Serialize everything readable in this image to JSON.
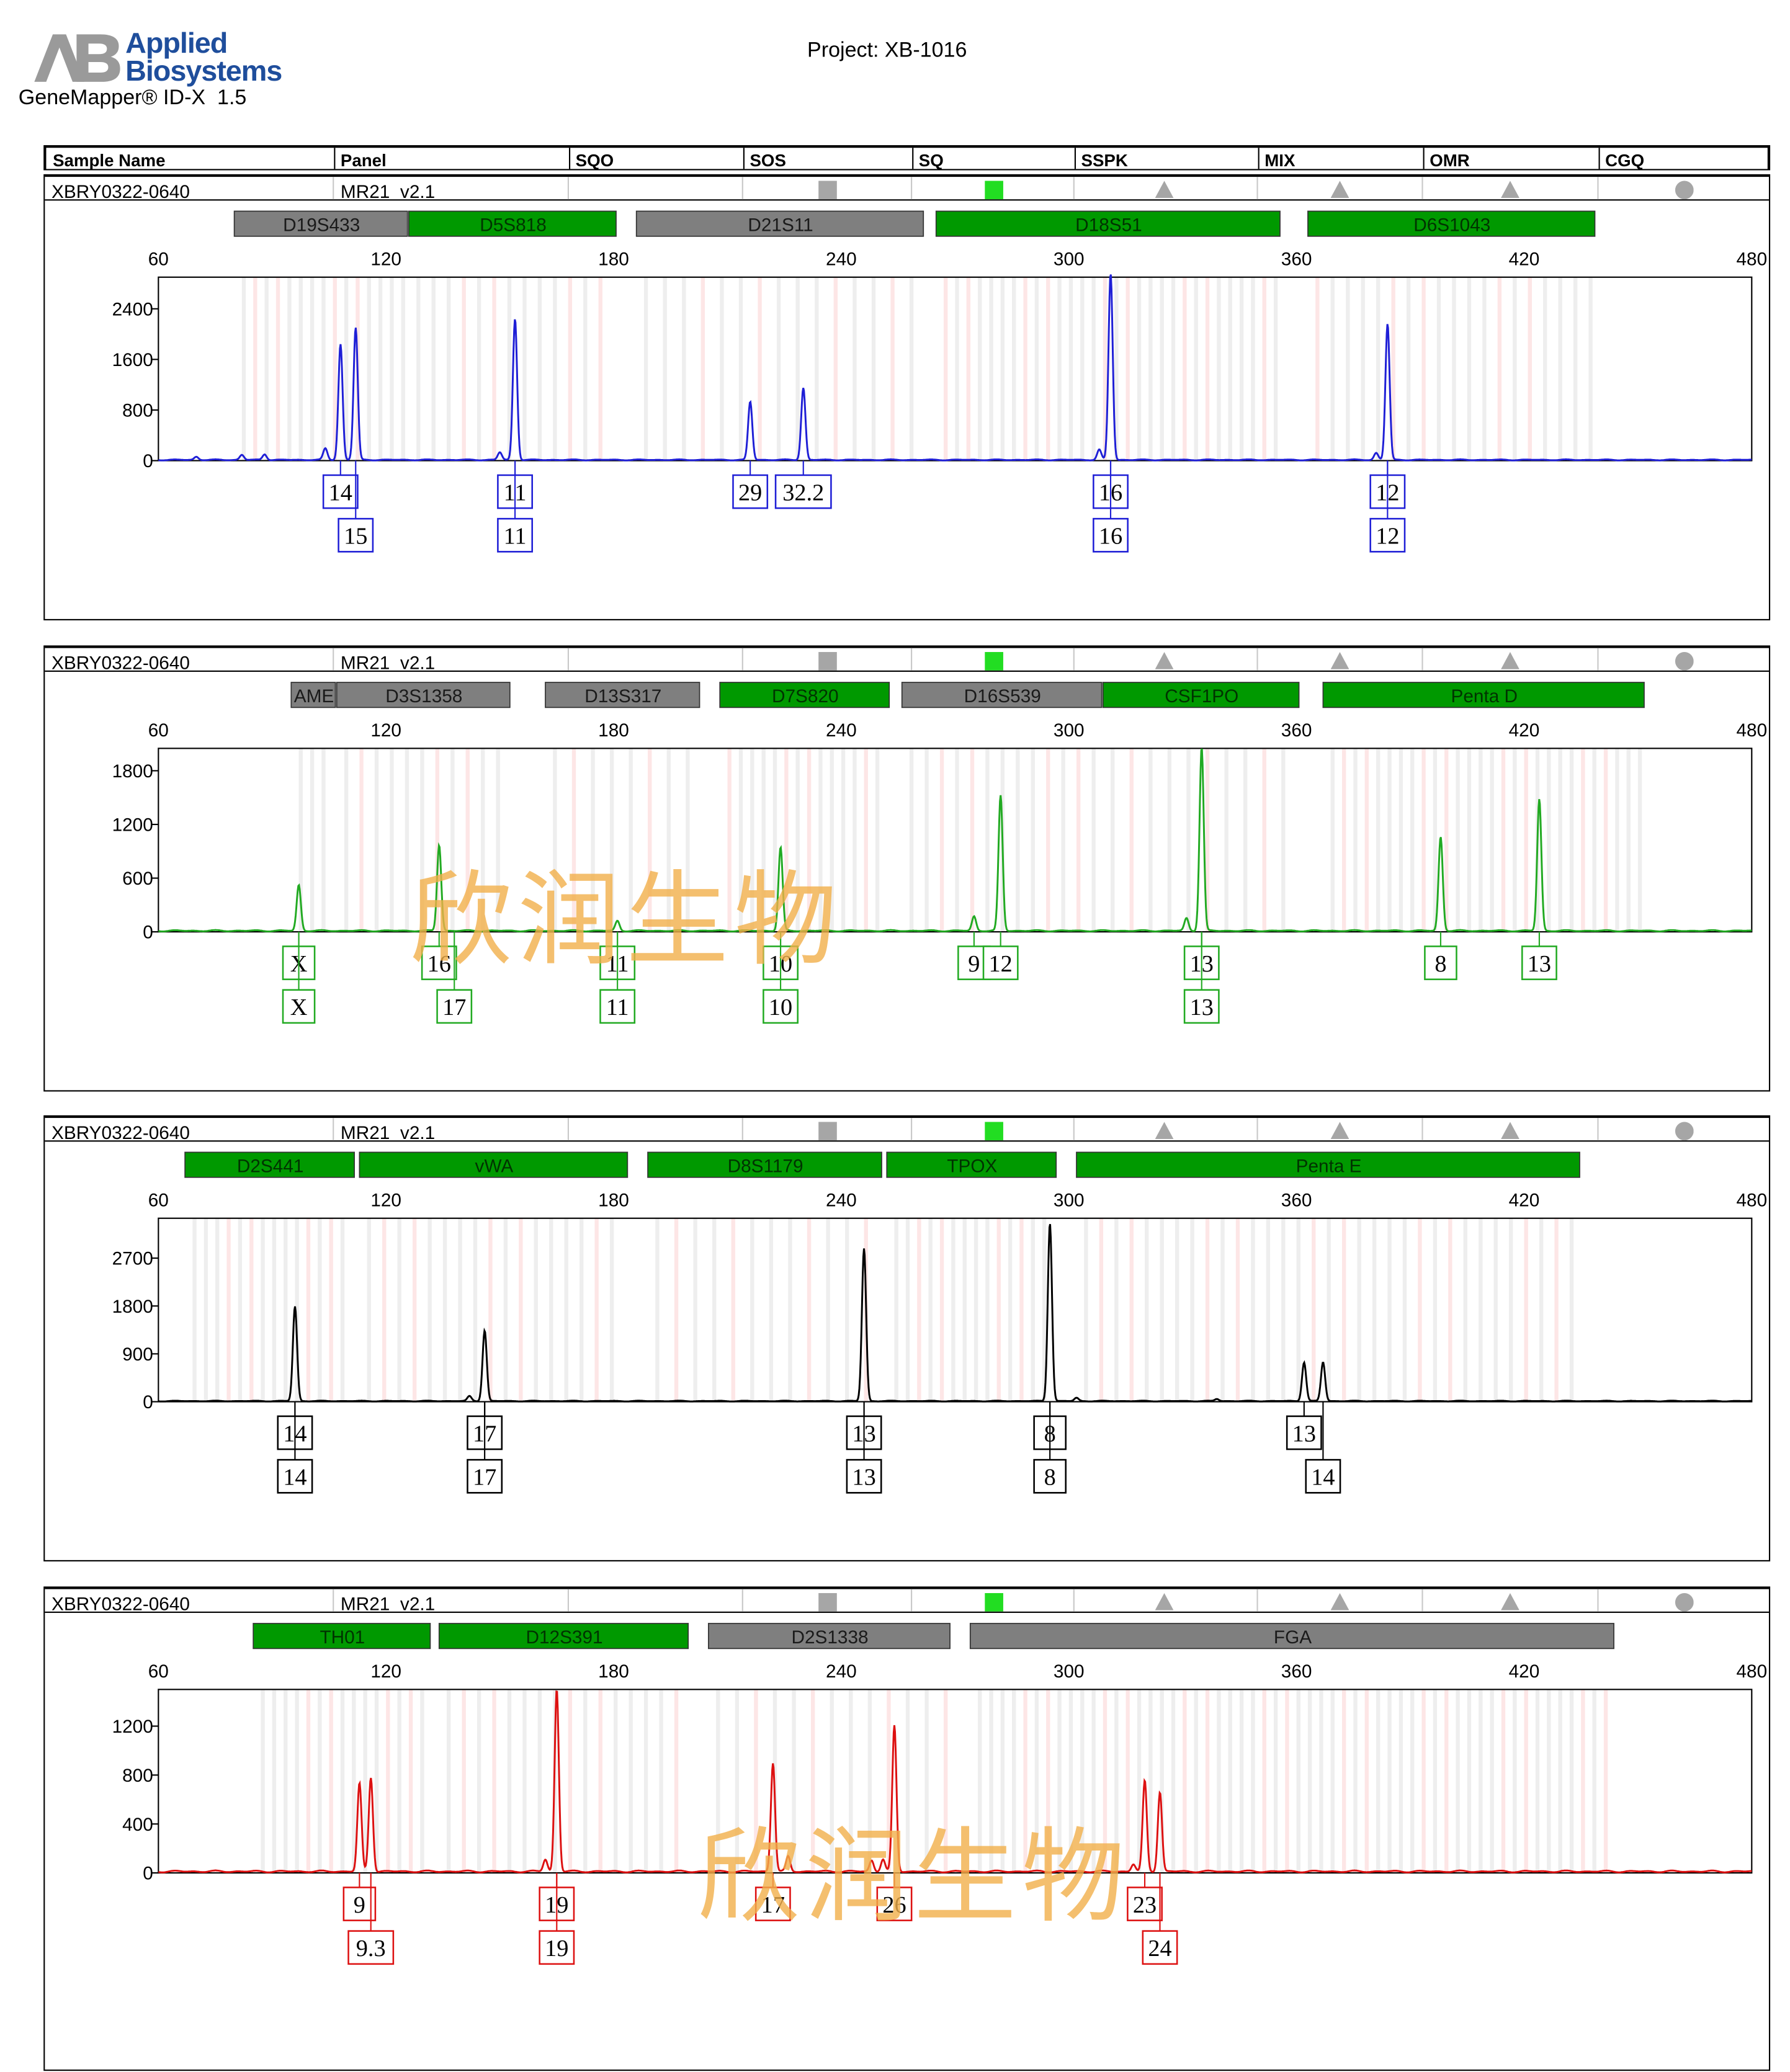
{
  "header": {
    "logo_brand_line1": "Applied",
    "logo_brand_line2": "Biosystems",
    "software": "GeneMapper® ID-X  1.5",
    "project": "Project: XB-1016",
    "columns": [
      "Sample Name",
      "Panel",
      "SQO",
      "SOS",
      "SQ",
      "SSPK",
      "MIX",
      "OMR",
      "CGQ"
    ]
  },
  "sample": {
    "name": "XBRY0322-0640",
    "panel": "MR21  v2.1",
    "flags": [
      {
        "column": "SOS",
        "shape": "square",
        "color": "#a6a6a6"
      },
      {
        "column": "SQ",
        "shape": "square",
        "color": "#22dd22"
      },
      {
        "column": "SSPK",
        "shape": "triangle",
        "color": "#a6a6a6"
      },
      {
        "column": "MIX",
        "shape": "triangle",
        "color": "#a6a6a6"
      },
      {
        "column": "OMR",
        "shape": "triangle",
        "color": "#a6a6a6"
      },
      {
        "column": "CGQ",
        "shape": "circle",
        "color": "#a6a6a6"
      }
    ]
  },
  "watermark": "欣润生物",
  "colors": {
    "marker_green": "#009900",
    "marker_gray": "#7f7f7f",
    "bin_gray": "#eeeeee",
    "bin_pink": "#fde6e6"
  },
  "chart_data": [
    {
      "type": "line",
      "dye": "blue",
      "color": "#1f1fd6",
      "xlim": [
        60,
        480
      ],
      "xticks": [
        60,
        120,
        180,
        240,
        300,
        360,
        420,
        480
      ],
      "ylim": [
        0,
        2900
      ],
      "yticks": [
        0,
        800,
        1600,
        2400
      ],
      "markers": [
        {
          "name": "D19S433",
          "start": 80,
          "end": 126,
          "color": "gray"
        },
        {
          "name": "D5S818",
          "start": 126,
          "end": 181,
          "color": "green"
        },
        {
          "name": "D21S11",
          "start": 186,
          "end": 262,
          "color": "gray"
        },
        {
          "name": "D18S51",
          "start": 265,
          "end": 356,
          "color": "green"
        },
        {
          "name": "D6S1043",
          "start": 363,
          "end": 439,
          "color": "green"
        }
      ],
      "peaks": [
        {
          "x": 108,
          "y": 1830
        },
        {
          "x": 112,
          "y": 2090
        },
        {
          "x": 154,
          "y": 2230
        },
        {
          "x": 216,
          "y": 920
        },
        {
          "x": 230,
          "y": 1140
        },
        {
          "x": 311,
          "y": 2950
        },
        {
          "x": 384,
          "y": 2150
        },
        {
          "x": 104,
          "y": 180
        },
        {
          "x": 150,
          "y": 120
        },
        {
          "x": 308,
          "y": 160
        },
        {
          "x": 381,
          "y": 110
        },
        {
          "x": 70,
          "y": 50
        },
        {
          "x": 82,
          "y": 80
        },
        {
          "x": 88,
          "y": 90
        }
      ],
      "calls": [
        {
          "x": 108,
          "label": "14",
          "row": 1
        },
        {
          "x": 112,
          "label": "15",
          "row": 2
        },
        {
          "x": 154,
          "label": "11",
          "row": 1
        },
        {
          "x": 154,
          "label": "11",
          "row": 2
        },
        {
          "x": 216,
          "label": "29",
          "row": 1
        },
        {
          "x": 230,
          "label": "32.2",
          "row": 1
        },
        {
          "x": 311,
          "label": "16",
          "row": 1
        },
        {
          "x": 311,
          "label": "16",
          "row": 2
        },
        {
          "x": 384,
          "label": "12",
          "row": 1
        },
        {
          "x": 384,
          "label": "12",
          "row": 2
        }
      ]
    },
    {
      "type": "line",
      "dye": "green",
      "color": "#22aa22",
      "xlim": [
        60,
        480
      ],
      "xticks": [
        60,
        120,
        180,
        240,
        300,
        360,
        420,
        480
      ],
      "ylim": [
        0,
        2050
      ],
      "yticks": [
        0,
        600,
        1200,
        1800
      ],
      "markers": [
        {
          "name": "AME",
          "start": 95,
          "end": 107,
          "color": "gray"
        },
        {
          "name": "D3S1358",
          "start": 107,
          "end": 153,
          "color": "gray"
        },
        {
          "name": "D13S317",
          "start": 162,
          "end": 203,
          "color": "gray"
        },
        {
          "name": "D7S820",
          "start": 208,
          "end": 253,
          "color": "green"
        },
        {
          "name": "D16S539",
          "start": 256,
          "end": 309,
          "color": "gray"
        },
        {
          "name": "CSF1PO",
          "start": 309,
          "end": 361,
          "color": "green"
        },
        {
          "name": "Penta D",
          "start": 367,
          "end": 452,
          "color": "green"
        }
      ],
      "peaks": [
        {
          "x": 97,
          "y": 510
        },
        {
          "x": 134,
          "y": 960
        },
        {
          "x": 181,
          "y": 110
        },
        {
          "x": 224,
          "y": 930
        },
        {
          "x": 275,
          "y": 160
        },
        {
          "x": 282,
          "y": 1510
        },
        {
          "x": 335,
          "y": 2050
        },
        {
          "x": 331,
          "y": 140
        },
        {
          "x": 398,
          "y": 1050
        },
        {
          "x": 424,
          "y": 1470
        }
      ],
      "calls": [
        {
          "x": 97,
          "label": "X",
          "row": 1
        },
        {
          "x": 97,
          "label": "X",
          "row": 2
        },
        {
          "x": 134,
          "label": "16",
          "row": 1
        },
        {
          "x": 138,
          "label": "17",
          "row": 2
        },
        {
          "x": 181,
          "label": "11",
          "row": 1
        },
        {
          "x": 181,
          "label": "11",
          "row": 2
        },
        {
          "x": 224,
          "label": "10",
          "row": 1
        },
        {
          "x": 224,
          "label": "10",
          "row": 2
        },
        {
          "x": 275,
          "label": "9",
          "row": 1
        },
        {
          "x": 282,
          "label": "12",
          "row": 1
        },
        {
          "x": 335,
          "label": "13",
          "row": 1
        },
        {
          "x": 335,
          "label": "13",
          "row": 2
        },
        {
          "x": 398,
          "label": "8",
          "row": 1
        },
        {
          "x": 424,
          "label": "13",
          "row": 1
        }
      ]
    },
    {
      "type": "line",
      "dye": "yellow",
      "color": "#000000",
      "xlim": [
        60,
        480
      ],
      "xticks": [
        60,
        120,
        180,
        240,
        300,
        360,
        420,
        480
      ],
      "ylim": [
        0,
        3450
      ],
      "yticks": [
        0,
        900,
        1800,
        2700
      ],
      "markers": [
        {
          "name": "D2S441",
          "start": 67,
          "end": 112,
          "color": "green"
        },
        {
          "name": "vWA",
          "start": 113,
          "end": 184,
          "color": "green"
        },
        {
          "name": "D8S1179",
          "start": 189,
          "end": 251,
          "color": "green"
        },
        {
          "name": "TPOX",
          "start": 252,
          "end": 297,
          "color": "green"
        },
        {
          "name": "Penta E",
          "start": 302,
          "end": 435,
          "color": "green"
        }
      ],
      "peaks": [
        {
          "x": 96,
          "y": 1780
        },
        {
          "x": 146,
          "y": 1330
        },
        {
          "x": 246,
          "y": 2870
        },
        {
          "x": 295,
          "y": 3350
        },
        {
          "x": 362,
          "y": 730
        },
        {
          "x": 367,
          "y": 730
        },
        {
          "x": 142,
          "y": 90
        },
        {
          "x": 302,
          "y": 60
        },
        {
          "x": 339,
          "y": 40
        }
      ],
      "calls": [
        {
          "x": 96,
          "label": "14",
          "row": 1
        },
        {
          "x": 96,
          "label": "14",
          "row": 2
        },
        {
          "x": 146,
          "label": "17",
          "row": 1
        },
        {
          "x": 146,
          "label": "17",
          "row": 2
        },
        {
          "x": 246,
          "label": "13",
          "row": 1
        },
        {
          "x": 246,
          "label": "13",
          "row": 2
        },
        {
          "x": 295,
          "label": "8",
          "row": 1
        },
        {
          "x": 295,
          "label": "8",
          "row": 2
        },
        {
          "x": 362,
          "label": "13",
          "row": 1
        },
        {
          "x": 367,
          "label": "14",
          "row": 2
        }
      ]
    },
    {
      "type": "line",
      "dye": "red",
      "color": "#dd1111",
      "xlim": [
        60,
        480
      ],
      "xticks": [
        60,
        120,
        180,
        240,
        300,
        360,
        420,
        480
      ],
      "ylim": [
        0,
        1500
      ],
      "yticks": [
        0,
        400,
        800,
        1200
      ],
      "markers": [
        {
          "name": "TH01",
          "start": 85,
          "end": 132,
          "color": "green"
        },
        {
          "name": "D12S391",
          "start": 134,
          "end": 200,
          "color": "green"
        },
        {
          "name": "D2S1338",
          "start": 205,
          "end": 269,
          "color": "gray"
        },
        {
          "name": "FGA",
          "start": 274,
          "end": 444,
          "color": "gray"
        }
      ],
      "peaks": [
        {
          "x": 113,
          "y": 720
        },
        {
          "x": 116,
          "y": 770
        },
        {
          "x": 165,
          "y": 1490
        },
        {
          "x": 222,
          "y": 890
        },
        {
          "x": 254,
          "y": 1190
        },
        {
          "x": 320,
          "y": 740
        },
        {
          "x": 324,
          "y": 650
        },
        {
          "x": 162,
          "y": 100
        },
        {
          "x": 226,
          "y": 120
        },
        {
          "x": 248,
          "y": 90
        },
        {
          "x": 251,
          "y": 100
        },
        {
          "x": 317,
          "y": 60
        }
      ],
      "calls": [
        {
          "x": 113,
          "label": "9",
          "row": 1
        },
        {
          "x": 116,
          "label": "9.3",
          "row": 2
        },
        {
          "x": 165,
          "label": "19",
          "row": 1
        },
        {
          "x": 165,
          "label": "19",
          "row": 2
        },
        {
          "x": 222,
          "label": "17",
          "row": 1
        },
        {
          "x": 254,
          "label": "26",
          "row": 1
        },
        {
          "x": 320,
          "label": "23",
          "row": 1
        },
        {
          "x": 324,
          "label": "24",
          "row": 2
        }
      ]
    }
  ]
}
